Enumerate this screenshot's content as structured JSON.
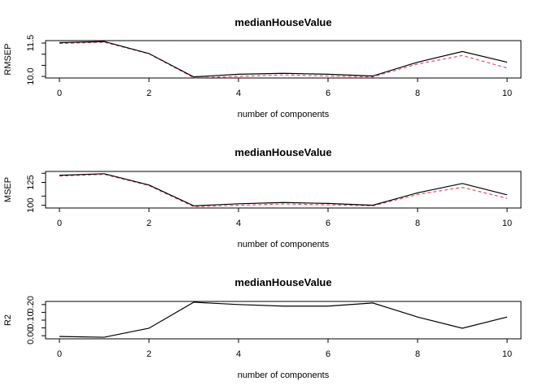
{
  "chart_data": [
    {
      "type": "line",
      "title": "medianHouseValue",
      "xlabel": "number of components",
      "ylabel": "RMSEP",
      "x": [
        0,
        1,
        2,
        3,
        4,
        5,
        6,
        7,
        8,
        9,
        10
      ],
      "xticks": [
        "0",
        "2",
        "4",
        "6",
        "8",
        "10"
      ],
      "xlim": [
        0,
        10
      ],
      "yticks": [
        "10.0",
        "10.5",
        "11.0",
        "11.5"
      ],
      "ytick_values": [
        10.0,
        10.5,
        11.0,
        11.5
      ],
      "ytick_labeled": [
        true,
        false,
        false,
        true
      ],
      "ylim": [
        9.93,
        11.61
      ],
      "series": [
        {
          "line_style": "solid",
          "color": "#000000",
          "values": [
            11.52,
            11.57,
            11.03,
            9.98,
            10.1,
            10.14,
            10.1,
            10.02,
            10.64,
            11.12,
            10.64
          ]
        },
        {
          "line_style": "dashed",
          "color": "#e0506a",
          "values": [
            11.48,
            11.54,
            11.02,
            9.94,
            10.0,
            10.07,
            10.02,
            9.98,
            10.56,
            10.94,
            10.38
          ]
        }
      ],
      "grid": false,
      "legend": "none"
    },
    {
      "type": "line",
      "title": "medianHouseValue",
      "xlabel": "number of components",
      "ylabel": "MSEP",
      "x": [
        0,
        1,
        2,
        3,
        4,
        5,
        6,
        7,
        8,
        9,
        10
      ],
      "xticks": [
        "0",
        "2",
        "4",
        "6",
        "8",
        "10"
      ],
      "xlim": [
        0,
        10
      ],
      "yticks": [
        "100",
        "110",
        "125",
        "135"
      ],
      "ytick_values": [
        100,
        110,
        125,
        135
      ],
      "ytick_labeled": [
        true,
        false,
        true,
        false
      ],
      "ylim": [
        97,
        137
      ],
      "series": [
        {
          "line_style": "solid",
          "color": "#000000",
          "values": [
            132.8,
            134.5,
            122.2,
            99.4,
            101.6,
            103.0,
            102.0,
            100.0,
            113.6,
            123.8,
            111.4
          ]
        },
        {
          "line_style": "dashed",
          "color": "#e0506a",
          "values": [
            132.0,
            133.8,
            121.6,
            98.4,
            100.0,
            101.4,
            100.5,
            99.4,
            111.8,
            119.6,
            107.6
          ]
        }
      ],
      "grid": false,
      "legend": "none"
    },
    {
      "type": "line",
      "title": "medianHouseValue",
      "xlabel": "number of components",
      "ylabel": "R2",
      "x": [
        0,
        1,
        2,
        3,
        4,
        5,
        6,
        7,
        8,
        9,
        10
      ],
      "xticks": [
        "0",
        "2",
        "4",
        "6",
        "8",
        "10"
      ],
      "xlim": [
        0,
        10
      ],
      "yticks": [
        "0.00",
        "0.05",
        "0.10",
        "0.15",
        "0.20"
      ],
      "ytick_values": [
        0.0,
        0.05,
        0.1,
        0.15,
        0.2
      ],
      "ytick_labeled": [
        true,
        false,
        true,
        false,
        true
      ],
      "ylim": [
        -0.02,
        0.22
      ],
      "series": [
        {
          "line_style": "solid",
          "color": "#000000",
          "values": [
            -0.005,
            -0.01,
            0.048,
            0.215,
            0.2,
            0.19,
            0.19,
            0.21,
            0.12,
            0.048,
            0.12
          ]
        }
      ],
      "grid": false,
      "legend": "none"
    }
  ]
}
